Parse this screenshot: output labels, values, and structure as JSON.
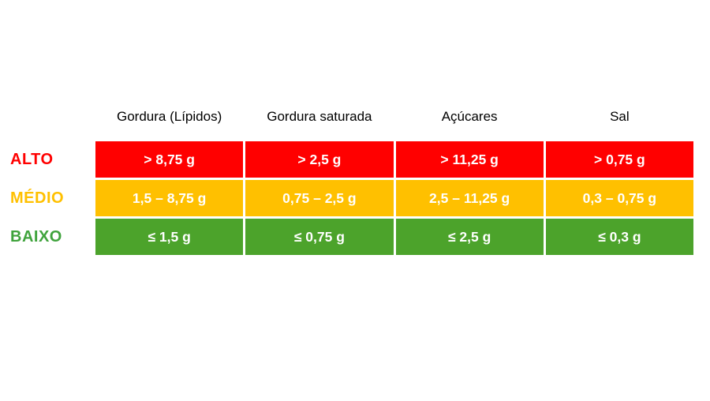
{
  "title": "Nutrient level thresholds table (Portuguese)",
  "colors": {
    "high": "#ff0000",
    "medium": "#ffc000",
    "low_cell": "#4ca32b",
    "low_label": "#3fa33c",
    "header_text": "#000000",
    "cell_text": "#ffffff",
    "background": "#ffffff"
  },
  "chart_data": {
    "type": "table",
    "columns": [
      "Gordura (Lípidos)",
      "Gordura saturada",
      "Açúcares",
      "Sal"
    ],
    "rows": [
      {
        "label": "ALTO",
        "level": "high",
        "color": "#ff0000",
        "values": [
          "> 8,75 g",
          "> 2,5 g",
          "> 11,25 g",
          "> 0,75 g"
        ]
      },
      {
        "label": "MÉDIO",
        "level": "medium",
        "color": "#ffc000",
        "values": [
          "1,5 – 8,75 g",
          "0,75 – 2,5 g",
          "2,5 – 11,25 g",
          "0,3 – 0,75 g"
        ]
      },
      {
        "label": "BAIXO",
        "level": "low",
        "color": "#4ca32b",
        "values": [
          "≤ 1,5 g",
          "≤ 0,75 g",
          "≤ 2,5 g",
          "≤ 0,3 g"
        ]
      }
    ]
  }
}
